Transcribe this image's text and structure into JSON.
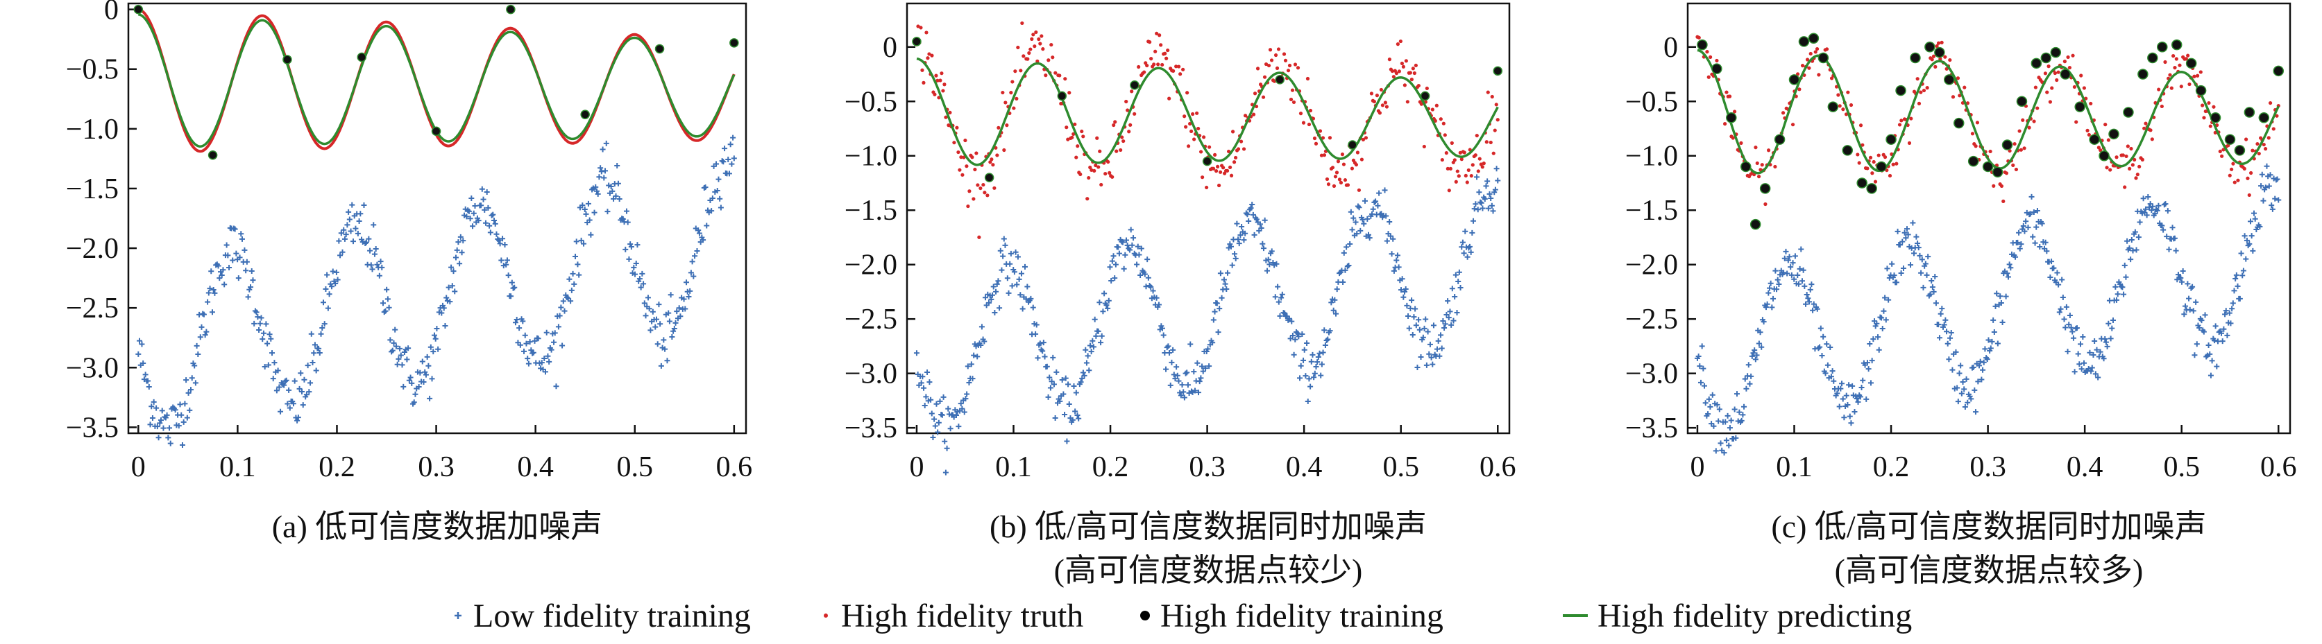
{
  "chart_data": [
    {
      "type": "scatter",
      "caption": "(a) 低可信度数据加噪声",
      "caption_line2": "",
      "xlim": [
        -0.01,
        0.612
      ],
      "ylim": [
        -3.55,
        0.05
      ],
      "xticks": [
        0,
        0.1,
        0.2,
        0.3,
        0.4,
        0.5,
        0.6
      ],
      "xtick_labels": [
        "0",
        "0.1",
        "0.2",
        "0.3",
        "0.4",
        "0.5",
        "0.6"
      ],
      "yticks": [
        0,
        -0.5,
        -1.0,
        -1.5,
        -2.0,
        -2.5,
        -3.0,
        -3.5
      ],
      "ytick_labels": [
        "0",
        "−0.5",
        "−1.0",
        "−1.5",
        "−2.0",
        "−2.5",
        "−3.0",
        "−3.5"
      ],
      "low_noise": 0.12,
      "truth_points": 0,
      "truth_noise": 0,
      "train_x": [
        0,
        0.075,
        0.15,
        0.225,
        0.3,
        0.375,
        0.45,
        0.525,
        0.6
      ],
      "train_y": [
        0.0,
        -1.22,
        -0.42,
        -0.4,
        -1.02,
        0.0,
        -0.88,
        -0.33,
        -0.28
      ],
      "draw_truth_curve": true,
      "truth_amp_scale": 1.0,
      "pred_amp_scale": 0.93
    },
    {
      "type": "scatter",
      "caption": "(b) 低/高可信度数据同时加噪声",
      "caption_line2": "(高可信度数据点较少)",
      "xlim": [
        -0.01,
        0.612
      ],
      "ylim": [
        -3.55,
        0.4
      ],
      "xticks": [
        0,
        0.1,
        0.2,
        0.3,
        0.4,
        0.5,
        0.6
      ],
      "xtick_labels": [
        "0",
        "0.1",
        "0.2",
        "0.3",
        "0.4",
        "0.5",
        "0.6"
      ],
      "yticks": [
        0,
        -0.5,
        -1.0,
        -1.5,
        -2.0,
        -2.5,
        -3.0,
        -3.5
      ],
      "ytick_labels": [
        "0",
        "−0.5",
        "−1.0",
        "−1.5",
        "−2.0",
        "−2.5",
        "−3.0",
        "−3.5"
      ],
      "low_noise": 0.12,
      "truth_points": 420,
      "truth_noise": 0.14,
      "train_x": [
        0,
        0.075,
        0.15,
        0.225,
        0.3,
        0.375,
        0.45,
        0.525,
        0.6
      ],
      "train_y": [
        0.05,
        -1.2,
        -0.45,
        -0.35,
        -1.05,
        -0.3,
        -0.9,
        -0.45,
        -0.22
      ],
      "draw_truth_curve": false,
      "truth_amp_scale": 1.0,
      "pred_amp_scale": 0.82
    },
    {
      "type": "scatter",
      "caption": "(c) 低/高可信度数据同时加噪声",
      "caption_line2": "(高可信度数据点较多)",
      "xlim": [
        -0.01,
        0.612
      ],
      "ylim": [
        -3.55,
        0.4
      ],
      "xticks": [
        0,
        0.1,
        0.2,
        0.3,
        0.4,
        0.5,
        0.6
      ],
      "xtick_labels": [
        "0",
        "0.1",
        "0.2",
        "0.3",
        "0.4",
        "0.5",
        "0.6"
      ],
      "yticks": [
        0,
        -0.5,
        -1.0,
        -1.5,
        -2.0,
        -2.5,
        -3.0,
        -3.5
      ],
      "ytick_labels": [
        "0",
        "−0.5",
        "−1.0",
        "−1.5",
        "−2.0",
        "−2.5",
        "−3.0",
        "−3.5"
      ],
      "low_noise": 0.12,
      "truth_points": 360,
      "truth_noise": 0.1,
      "train_x": [
        0.005,
        0.02,
        0.035,
        0.05,
        0.06,
        0.07,
        0.085,
        0.1,
        0.11,
        0.12,
        0.13,
        0.14,
        0.155,
        0.17,
        0.18,
        0.19,
        0.2,
        0.21,
        0.225,
        0.24,
        0.25,
        0.26,
        0.27,
        0.285,
        0.3,
        0.31,
        0.32,
        0.335,
        0.35,
        0.36,
        0.37,
        0.38,
        0.395,
        0.41,
        0.42,
        0.43,
        0.445,
        0.46,
        0.47,
        0.48,
        0.495,
        0.51,
        0.52,
        0.535,
        0.55,
        0.56,
        0.57,
        0.585,
        0.6
      ],
      "train_y": [
        0.02,
        -0.2,
        -0.65,
        -1.1,
        -1.63,
        -1.3,
        -0.85,
        -0.3,
        0.05,
        0.08,
        -0.1,
        -0.55,
        -0.95,
        -1.25,
        -1.3,
        -1.1,
        -0.85,
        -0.4,
        -0.1,
        0.0,
        -0.05,
        -0.3,
        -0.7,
        -1.05,
        -1.1,
        -1.15,
        -0.9,
        -0.5,
        -0.15,
        -0.1,
        -0.05,
        -0.25,
        -0.55,
        -0.85,
        -1.0,
        -0.8,
        -0.6,
        -0.25,
        -0.1,
        0.0,
        0.02,
        -0.15,
        -0.4,
        -0.65,
        -0.85,
        -0.95,
        -0.6,
        -0.65,
        -0.22
      ],
      "draw_truth_curve": false,
      "truth_amp_scale": 1.0,
      "pred_amp_scale": 0.95
    }
  ],
  "low_fidelity": {
    "mean": -2.4,
    "trend_per_unit_x": 1.5,
    "amplitude": 0.7,
    "period": 0.125,
    "points": 500
  },
  "high_fidelity": {
    "center": -0.6,
    "amplitude": 0.6,
    "period": 0.125,
    "decay_per_unit_x": 0.5
  },
  "legend": {
    "items": [
      {
        "key": "low",
        "label": "Low fidelity training",
        "color": "#3d6fb5"
      },
      {
        "key": "truth",
        "label": "High fidelity truth",
        "color": "#d62728"
      },
      {
        "key": "train",
        "label": "High fidelity training",
        "color": "#000000"
      },
      {
        "key": "pred",
        "label": "High fidelity predicting",
        "color": "#2e8b2e"
      }
    ]
  },
  "colors": {
    "low": "#3d6fb5",
    "truth": "#d62728",
    "train": "#111111",
    "train_edge": "#2e8b2e",
    "pred": "#2e8b2e",
    "axis": "#111111"
  }
}
